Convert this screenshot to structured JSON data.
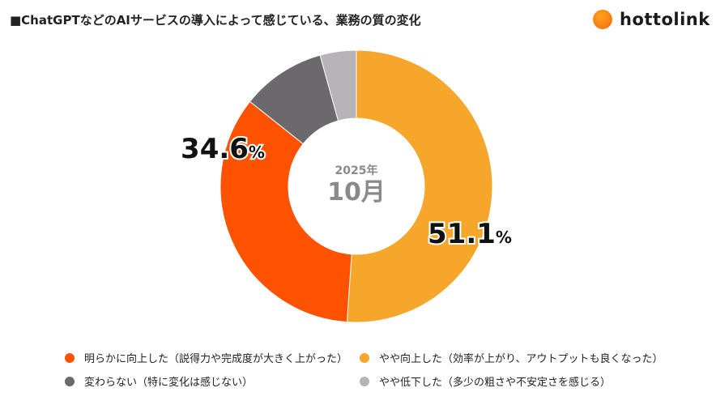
{
  "title": "■ChatGPTなどのAIサービスの導入によって感じている、業務の質の変化",
  "logo_text": "hottolink",
  "center_label": {
    "year": "2025年",
    "month": "10月"
  },
  "chart_data": {
    "type": "pie",
    "variant": "donut",
    "title": "■ChatGPTなどのAIサービスの導入によって感じている、業務の質の変化",
    "categories": [
      "やや向上した（効率が上がり、アウトプットも良くなった）",
      "明らかに向上した（説得力や完成度が大きく上がった）",
      "変わらない（特に変化は感じない）",
      "やや低下した（多少の粗さや不安定さを感じる）"
    ],
    "values": [
      51.1,
      34.6,
      10.0,
      4.3
    ],
    "colors": [
      "#F6A62A",
      "#FF5200",
      "#6B696C",
      "#B6B4B7"
    ],
    "data_labels": [
      "51.1",
      "34.6",
      "",
      ""
    ],
    "unit": "%",
    "legend_position": "bottom"
  },
  "legend": [
    {
      "label": "明らかに向上した（説得力や完成度が大きく上がった）",
      "color": "#FF5200"
    },
    {
      "label": "やや向上した（効率が上がり、アウトプットも良くなった）",
      "color": "#F6A62A"
    },
    {
      "label": "変わらない（特に変化は感じない）",
      "color": "#6B696C"
    },
    {
      "label": "やや低下した（多少の粗さや不安定さを感じる）",
      "color": "#B6B4B7"
    }
  ]
}
